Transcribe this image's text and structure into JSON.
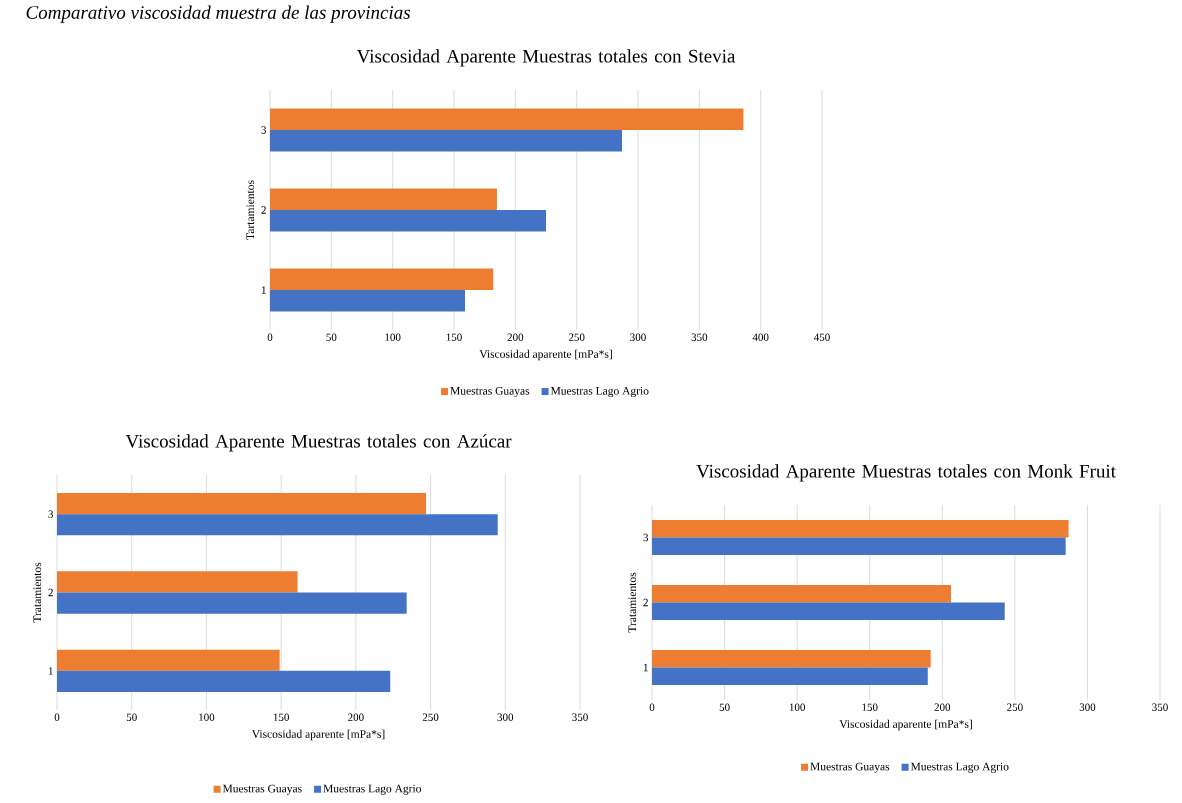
{
  "chart_data": [
    {
      "type": "bar",
      "orientation": "horizontal",
      "title": "Viscosidad Aparente Muestras totales con Stevia",
      "xlabel": "Viscosidad aparente [mPa*s]",
      "ylabel": "Tartamientos",
      "annotations": [
        "Comparativo viscosidad muestra de las provincias"
      ],
      "categories": [
        "3",
        "2",
        "1"
      ],
      "series": [
        {
          "name": "Muestras Guayas",
          "color": "#ed7d31",
          "values": [
            386,
            185,
            182
          ]
        },
        {
          "name": "Muestras Lago Agrio",
          "color": "#4472c4",
          "values": [
            287,
            225,
            159
          ]
        }
      ],
      "xlim": [
        0,
        450
      ],
      "xticks": [
        0,
        50,
        100,
        150,
        200,
        250,
        300,
        350,
        400,
        450
      ],
      "grid": "x",
      "legend": "bottom"
    },
    {
      "type": "bar",
      "orientation": "horizontal",
      "title": "Viscosidad Aparente Muestras totales con Azúcar",
      "xlabel": "Viscosidad aparente [mPa*s]",
      "ylabel": "Tratamientos",
      "categories": [
        "3",
        "2",
        "1"
      ],
      "series": [
        {
          "name": "Muestras Guayas",
          "color": "#ed7d31",
          "values": [
            247,
            161,
            149
          ]
        },
        {
          "name": "Muestras Lago Agrio",
          "color": "#4472c4",
          "values": [
            295,
            234,
            223
          ]
        }
      ],
      "xlim": [
        0,
        350
      ],
      "xticks": [
        0,
        50,
        100,
        150,
        200,
        250,
        300,
        350
      ],
      "grid": "x",
      "legend": "bottom"
    },
    {
      "type": "bar",
      "orientation": "horizontal",
      "title": "Viscosidad Aparente Muestras totales con Monk Fruit",
      "xlabel": "Viscosidad aparente [mPa*s]",
      "ylabel": "Tratamientos",
      "categories": [
        "3",
        "2",
        "1"
      ],
      "series": [
        {
          "name": "Muestras Guayas",
          "color": "#ed7d31",
          "values": [
            287,
            206,
            192
          ]
        },
        {
          "name": "Muestras Lago Agrio",
          "color": "#4472c4",
          "values": [
            285,
            243,
            190
          ]
        }
      ],
      "xlim": [
        0,
        350
      ],
      "xticks": [
        0,
        50,
        100,
        150,
        200,
        250,
        300,
        350
      ],
      "grid": "x",
      "legend": "bottom"
    }
  ]
}
